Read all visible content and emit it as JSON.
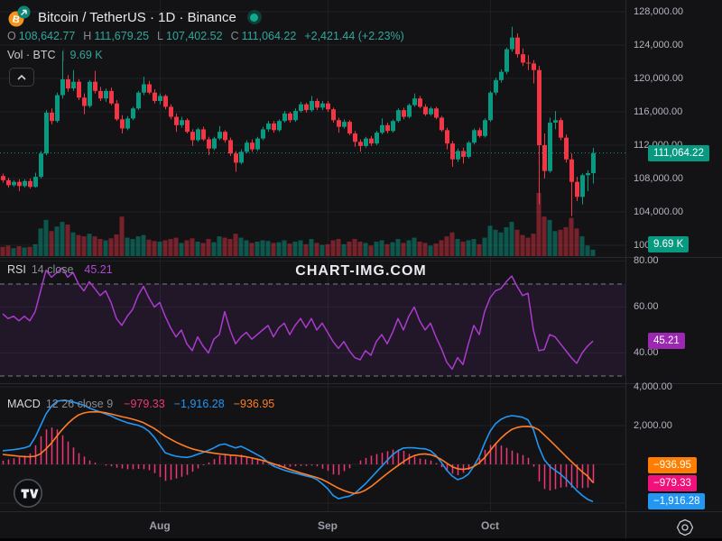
{
  "header": {
    "symbol_title": "Bitcoin / TetherUS · 1D · Binance",
    "ohlc": {
      "o_label": "O",
      "o_value": "108,642.77",
      "h_label": "H",
      "h_value": "111,679.25",
      "l_label": "L",
      "l_value": "107,402.52",
      "c_label": "C",
      "c_value": "111,064.22",
      "change_text": "+2,421.44 (+2.23%)"
    },
    "volume_row": {
      "label": "Vol · BTC",
      "value": "9.69 K"
    }
  },
  "watermark_text": "CHART-IMG.COM",
  "legends": {
    "rsi": {
      "title": "RSI",
      "params": "14 close",
      "value": "45.21"
    },
    "macd": {
      "title": "MACD",
      "params": "12 26 close 9",
      "histogram_value": "−979.33",
      "macd_value": "−1,916.28",
      "signal_value": "−936.95"
    }
  },
  "axis": {
    "price_labels": [
      {
        "text": "128,000.00",
        "value": 128000
      },
      {
        "text": "124,000.00",
        "value": 124000
      },
      {
        "text": "120,000.00",
        "value": 120000
      },
      {
        "text": "116,000.00",
        "value": 116000
      },
      {
        "text": "112,000.00",
        "value": 112000
      },
      {
        "text": "108,000.00",
        "value": 108000
      },
      {
        "text": "104,000.00",
        "value": 104000
      },
      {
        "text": "100,000.00",
        "value": 100000
      }
    ],
    "rsi_labels": [
      {
        "text": "80.00",
        "value": 80
      },
      {
        "text": "60.00",
        "value": 60
      },
      {
        "text": "40.00",
        "value": 40
      }
    ],
    "macd_labels": [
      {
        "text": "4,000.00",
        "value": 4000
      },
      {
        "text": "2,000.00",
        "value": 2000
      }
    ],
    "time_labels": [
      {
        "text": "Aug",
        "index": 29
      },
      {
        "text": "Sep",
        "index": 60
      },
      {
        "text": "Oct",
        "index": 90
      }
    ]
  },
  "badges": {
    "price": {
      "text": "111,064.22",
      "value": 111064.22,
      "color": "#089981"
    },
    "volume": {
      "text": "9.69 K",
      "value": 9690,
      "color": "#089981"
    },
    "rsi": {
      "text": "45.21",
      "value": 45.21,
      "color": "#9c27b0"
    },
    "macd_signal": {
      "text": "−936.95",
      "value": -936.95,
      "color": "#ff7d00"
    },
    "macd_hist": {
      "text": "−979.33",
      "value": -979.33,
      "color": "#f0127a"
    },
    "macd_line": {
      "text": "−1,916.28",
      "value": -1916.28,
      "color": "#2196f3"
    }
  },
  "colors": {
    "background": "#131316",
    "grid": "#1e2025",
    "separator": "#262930",
    "up": "#089981",
    "down": "#f23645",
    "volume_up": "rgba(8,153,129,0.5)",
    "volume_down": "rgba(242,54,69,0.45)",
    "axis_text": "#b2b5be",
    "price_dotted": "#089981",
    "rsi_line": "#aa3bcc",
    "rsi_band": "rgba(170,59,204,0.10)",
    "levels_dash": "#8a8e98",
    "macd_line": "#2196f3",
    "signal_line": "#ff7d26",
    "hist": "#f23674",
    "watermark": "#e9ebef"
  },
  "chart_data": {
    "type": "candlestick",
    "symbol": "Bitcoin / TetherUS",
    "exchange": "Binance",
    "interval": "1D",
    "title": "Bitcoin / TetherUS · 1D · Binance",
    "last_price": 111064.22,
    "price_axis_visible_labels": [
      128000,
      124000,
      120000,
      116000,
      112000,
      108000,
      104000,
      100000
    ],
    "time_axis_months": [
      "Aug",
      "Sep",
      "Oct"
    ],
    "legend_note": "grid on, dark theme, panes: price+volume / RSI(14) / MACD(12,26,9)",
    "candles": [
      [
        108300,
        108600,
        107500,
        107800,
        14000
      ],
      [
        107800,
        108100,
        106900,
        107200,
        16000
      ],
      [
        107200,
        107800,
        107000,
        107600,
        12000
      ],
      [
        107600,
        107900,
        106500,
        107100,
        15000
      ],
      [
        107100,
        107900,
        106900,
        107700,
        13000
      ],
      [
        107700,
        108000,
        106800,
        107000,
        14000
      ],
      [
        107000,
        108700,
        106900,
        108200,
        18000
      ],
      [
        108200,
        111300,
        108000,
        111000,
        42000
      ],
      [
        111000,
        116200,
        110800,
        115900,
        55000
      ],
      [
        115900,
        116400,
        114500,
        114900,
        38000
      ],
      [
        114900,
        118300,
        114700,
        118000,
        45000
      ],
      [
        118000,
        123300,
        117600,
        119900,
        52000
      ],
      [
        119900,
        120400,
        118400,
        118800,
        48000
      ],
      [
        118800,
        121000,
        118500,
        119600,
        36000
      ],
      [
        119600,
        119900,
        117400,
        117700,
        32000
      ],
      [
        117700,
        118200,
        115700,
        116700,
        30000
      ],
      [
        116700,
        119800,
        116500,
        119600,
        34000
      ],
      [
        119600,
        120900,
        118200,
        118500,
        30000
      ],
      [
        118500,
        119000,
        117300,
        117600,
        26000
      ],
      [
        117600,
        118800,
        117200,
        118500,
        24000
      ],
      [
        118500,
        118900,
        116800,
        117000,
        27000
      ],
      [
        117000,
        117400,
        114900,
        115100,
        33000
      ],
      [
        115100,
        115600,
        113400,
        114000,
        60000
      ],
      [
        114000,
        115500,
        113800,
        115200,
        28000
      ],
      [
        115200,
        116600,
        115000,
        116400,
        26000
      ],
      [
        116400,
        118500,
        116200,
        118300,
        30000
      ],
      [
        118300,
        120200,
        118000,
        119300,
        32000
      ],
      [
        119300,
        119700,
        118100,
        118300,
        25000
      ],
      [
        118300,
        118700,
        117000,
        117300,
        23000
      ],
      [
        117300,
        118200,
        116900,
        117900,
        22000
      ],
      [
        117900,
        118100,
        116300,
        116600,
        24000
      ],
      [
        116600,
        116900,
        115100,
        115400,
        26000
      ],
      [
        115400,
        115800,
        113600,
        114400,
        28000
      ],
      [
        114400,
        115400,
        114100,
        115000,
        20000
      ],
      [
        115000,
        115200,
        113400,
        113600,
        24000
      ],
      [
        113600,
        113900,
        111900,
        112600,
        27000
      ],
      [
        112600,
        114100,
        112400,
        113900,
        22000
      ],
      [
        113900,
        114200,
        112500,
        112700,
        20000
      ],
      [
        112700,
        113000,
        110800,
        111600,
        26000
      ],
      [
        111600,
        113000,
        111400,
        112800,
        21000
      ],
      [
        112800,
        114300,
        112600,
        113600,
        30000
      ],
      [
        113600,
        113800,
        112300,
        112600,
        28000
      ],
      [
        112600,
        112900,
        110700,
        111000,
        26000
      ],
      [
        111000,
        111300,
        108800,
        109900,
        34000
      ],
      [
        109900,
        111500,
        109700,
        111200,
        28000
      ],
      [
        111200,
        112600,
        111000,
        112300,
        24000
      ],
      [
        112300,
        112700,
        111200,
        111500,
        20000
      ],
      [
        111500,
        113000,
        111300,
        112800,
        22000
      ],
      [
        112800,
        114200,
        112600,
        113900,
        24000
      ],
      [
        113900,
        114900,
        113600,
        114600,
        23000
      ],
      [
        114600,
        114900,
        113500,
        113800,
        20000
      ],
      [
        113800,
        115100,
        113600,
        114900,
        21000
      ],
      [
        114900,
        116100,
        114700,
        115800,
        24000
      ],
      [
        115800,
        116000,
        114700,
        115000,
        19000
      ],
      [
        115000,
        116400,
        114800,
        116100,
        22000
      ],
      [
        116100,
        117200,
        115900,
        116900,
        24000
      ],
      [
        116900,
        117100,
        115900,
        116200,
        18000
      ],
      [
        116200,
        117900,
        116000,
        117300,
        26000
      ],
      [
        117300,
        117600,
        116200,
        116500,
        20000
      ],
      [
        116500,
        117300,
        116200,
        117000,
        17000
      ],
      [
        117000,
        117300,
        116000,
        116300,
        18000
      ],
      [
        116300,
        116500,
        114700,
        115000,
        24000
      ],
      [
        115000,
        115300,
        113500,
        114200,
        26000
      ],
      [
        114200,
        115100,
        114000,
        114800,
        18000
      ],
      [
        114800,
        115000,
        113200,
        113400,
        22000
      ],
      [
        113400,
        113700,
        111800,
        112400,
        26000
      ],
      [
        112400,
        112700,
        111200,
        111900,
        22000
      ],
      [
        111900,
        113000,
        111700,
        112800,
        20000
      ],
      [
        112800,
        113100,
        111900,
        112200,
        16000
      ],
      [
        112200,
        113700,
        112000,
        113500,
        22000
      ],
      [
        113500,
        115200,
        113300,
        114400,
        24000
      ],
      [
        114400,
        114700,
        113400,
        113700,
        18000
      ],
      [
        113700,
        115100,
        113500,
        114900,
        21000
      ],
      [
        114900,
        116400,
        114700,
        116200,
        26000
      ],
      [
        116200,
        116500,
        115100,
        115400,
        20000
      ],
      [
        115400,
        117000,
        115200,
        116800,
        24000
      ],
      [
        116800,
        118200,
        116600,
        117600,
        28000
      ],
      [
        117600,
        117900,
        116400,
        116600,
        22000
      ],
      [
        116600,
        116900,
        115500,
        115700,
        20000
      ],
      [
        115700,
        116600,
        115500,
        116400,
        16000
      ],
      [
        116400,
        116600,
        115100,
        115300,
        19000
      ],
      [
        115300,
        115500,
        113600,
        113800,
        24000
      ],
      [
        113800,
        114100,
        111500,
        112200,
        30000
      ],
      [
        112200,
        112500,
        109400,
        110300,
        36000
      ],
      [
        110300,
        111600,
        110000,
        111300,
        26000
      ],
      [
        111300,
        111700,
        109800,
        110600,
        22000
      ],
      [
        110600,
        112500,
        110400,
        112300,
        24000
      ],
      [
        112300,
        114000,
        112100,
        113800,
        26000
      ],
      [
        113800,
        114100,
        112900,
        113100,
        18000
      ],
      [
        113100,
        115200,
        112900,
        115000,
        28000
      ],
      [
        115000,
        118500,
        114800,
        118300,
        46000
      ],
      [
        118300,
        120100,
        118000,
        119800,
        40000
      ],
      [
        119800,
        121100,
        119500,
        120800,
        36000
      ],
      [
        120800,
        123700,
        120500,
        123500,
        44000
      ],
      [
        123500,
        126200,
        123200,
        124900,
        52000
      ],
      [
        124900,
        125400,
        122500,
        122900,
        40000
      ],
      [
        122900,
        123600,
        121500,
        121900,
        32000
      ],
      [
        121900,
        122800,
        121000,
        121800,
        28000
      ],
      [
        121800,
        122200,
        119400,
        121000,
        34000
      ],
      [
        121000,
        121500,
        104900,
        112000,
        96000
      ],
      [
        112000,
        113400,
        108000,
        108900,
        60000
      ],
      [
        108900,
        115300,
        108700,
        114700,
        55000
      ],
      [
        114700,
        116100,
        113900,
        115000,
        38000
      ],
      [
        115000,
        115300,
        112600,
        112900,
        40000
      ],
      [
        112900,
        113300,
        109900,
        110300,
        44000
      ],
      [
        110300,
        111000,
        103500,
        107600,
        58000
      ],
      [
        107600,
        108200,
        105300,
        105800,
        42000
      ],
      [
        105800,
        108600,
        104900,
        108400,
        30000
      ],
      [
        108400,
        109000,
        106500,
        108642.78,
        16000
      ],
      [
        108642.77,
        111679.25,
        107402.52,
        111064.22,
        9690
      ]
    ],
    "indicators": {
      "rsi": {
        "period": 14,
        "source": "close",
        "overbought": 70,
        "oversold": 30,
        "last": 45.21,
        "values": [
          57,
          55,
          56,
          54,
          56,
          54,
          58,
          67,
          76,
          73,
          75,
          77,
          73,
          75,
          70,
          67,
          71,
          68,
          65,
          67,
          62,
          55,
          52,
          56,
          59,
          65,
          69,
          64,
          60,
          62,
          56,
          51,
          47,
          50,
          44,
          41,
          47,
          43,
          40,
          46,
          48,
          58,
          50,
          44,
          47,
          49,
          46,
          48,
          50,
          52,
          47,
          51,
          53,
          48,
          52,
          55,
          51,
          55,
          50,
          53,
          49,
          45,
          42,
          45,
          41,
          38,
          37,
          41,
          39,
          45,
          48,
          44,
          49,
          55,
          50,
          56,
          60,
          54,
          50,
          53,
          47,
          42,
          36,
          33,
          38,
          35,
          44,
          52,
          48,
          58,
          64,
          67,
          68,
          71,
          73.5,
          69,
          65,
          66,
          50,
          41,
          41.5,
          48,
          47,
          44,
          41,
          38,
          35.5,
          40,
          43,
          45.21
        ]
      },
      "macd": {
        "fast": 12,
        "slow": 26,
        "source": "close",
        "signal_period": 9,
        "last_macd": -1916.28,
        "last_signal": -936.95,
        "last_histogram": -979.33,
        "macd": [
          700,
          730,
          760,
          800,
          850,
          950,
          1400,
          2000,
          2600,
          3000,
          3250,
          3300,
          3280,
          3220,
          3130,
          3050,
          2900,
          2800,
          2700,
          2600,
          2500,
          2360,
          2250,
          2150,
          2080,
          2020,
          1900,
          1700,
          1400,
          1000,
          600,
          500,
          420,
          380,
          360,
          420,
          520,
          620,
          720,
          850,
          1000,
          1050,
          950,
          850,
          930,
          800,
          650,
          500,
          350,
          100,
          -90,
          -200,
          -300,
          -380,
          -450,
          -520,
          -600,
          -660,
          -780,
          -1000,
          -1250,
          -1600,
          -1770,
          -1700,
          -1640,
          -1500,
          -1250,
          -1000,
          -700,
          -400,
          -100,
          200,
          500,
          700,
          840,
          860,
          850,
          820,
          800,
          700,
          465,
          100,
          -300,
          -600,
          -790,
          -700,
          -500,
          -100,
          400,
          1100,
          1700,
          2100,
          2320,
          2450,
          2510,
          2480,
          2430,
          2300,
          1800,
          900,
          250,
          -100,
          -300,
          -500,
          -750,
          -1050,
          -1350,
          -1600,
          -1800,
          -1916.28
        ],
        "signal": [
          510,
          480,
          450,
          420,
          400,
          390,
          420,
          550,
          800,
          1100,
          1450,
          1800,
          2100,
          2350,
          2550,
          2650,
          2700,
          2710,
          2700,
          2660,
          2600,
          2530,
          2460,
          2400,
          2330,
          2250,
          2150,
          2000,
          1850,
          1650,
          1450,
          1300,
          1150,
          1020,
          900,
          800,
          730,
          670,
          620,
          575,
          540,
          510,
          480,
          460,
          430,
          390,
          330,
          270,
          200,
          120,
          30,
          -60,
          -160,
          -260,
          -350,
          -440,
          -520,
          -600,
          -680,
          -780,
          -920,
          -1080,
          -1230,
          -1350,
          -1440,
          -1500,
          -1450,
          -1330,
          -1150,
          -930,
          -700,
          -480,
          -260,
          -60,
          140,
          320,
          450,
          520,
          540,
          500,
          400,
          250,
          60,
          -120,
          -230,
          -260,
          -220,
          -110,
          80,
          350,
          700,
          1050,
          1350,
          1600,
          1800,
          1900,
          1950,
          1960,
          1920,
          1780,
          1520,
          1250,
          980,
          700,
          420,
          150,
          -120,
          -380,
          -600,
          -936.95
        ]
      }
    }
  }
}
